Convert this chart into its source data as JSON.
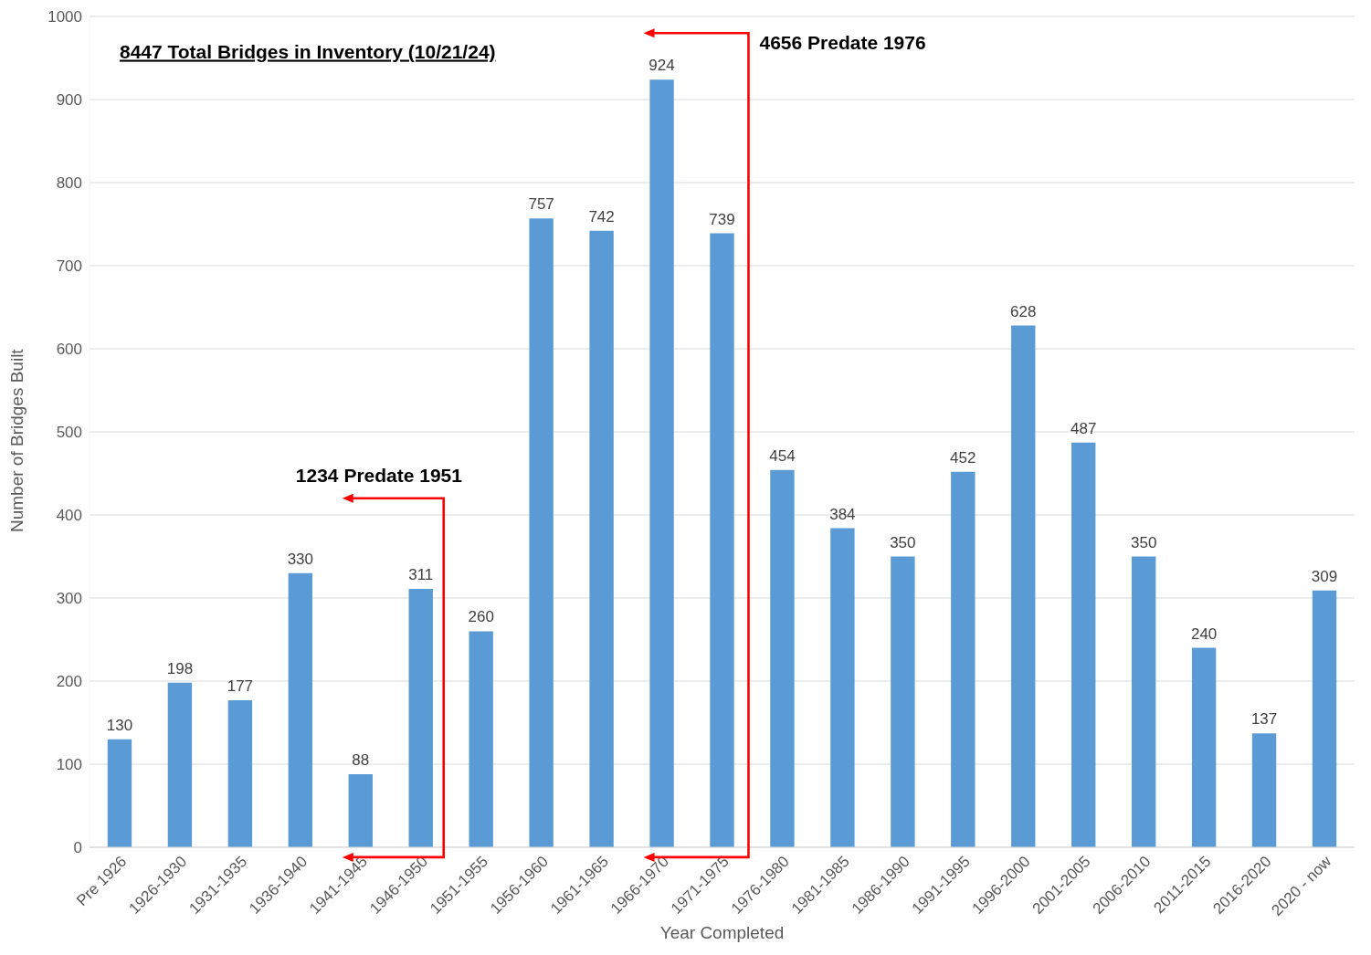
{
  "chart_data": {
    "type": "bar",
    "xlabel": "Year Completed",
    "ylabel": "Number of Bridges Built",
    "categories": [
      "Pre 1926",
      "1926-1930",
      "1931-1935",
      "1936-1940",
      "1941-1945",
      "1946-1950",
      "1951-1955",
      "1956-1960",
      "1961-1965",
      "1966-1970",
      "1971-1975",
      "1976-1980",
      "1981-1985",
      "1986-1990",
      "1991-1995",
      "1996-2000",
      "2001-2005",
      "2006-2010",
      "2011-2015",
      "2016-2020",
      "2020 - now"
    ],
    "values": [
      130,
      198,
      177,
      330,
      88,
      311,
      260,
      757,
      742,
      924,
      739,
      454,
      384,
      350,
      452,
      628,
      487,
      350,
      240,
      137,
      309
    ],
    "color": "#5b9bd5",
    "ylim": [
      0,
      1000
    ],
    "yticks": [
      0,
      100,
      200,
      300,
      400,
      500,
      600,
      700,
      800,
      900,
      1000
    ],
    "grid": "y",
    "data_labels": true,
    "annotations": [
      "8447 Total Bridges in Inventory (10/21/24)",
      "1234 Predate 1951",
      "4656 Predate 1976"
    ]
  }
}
